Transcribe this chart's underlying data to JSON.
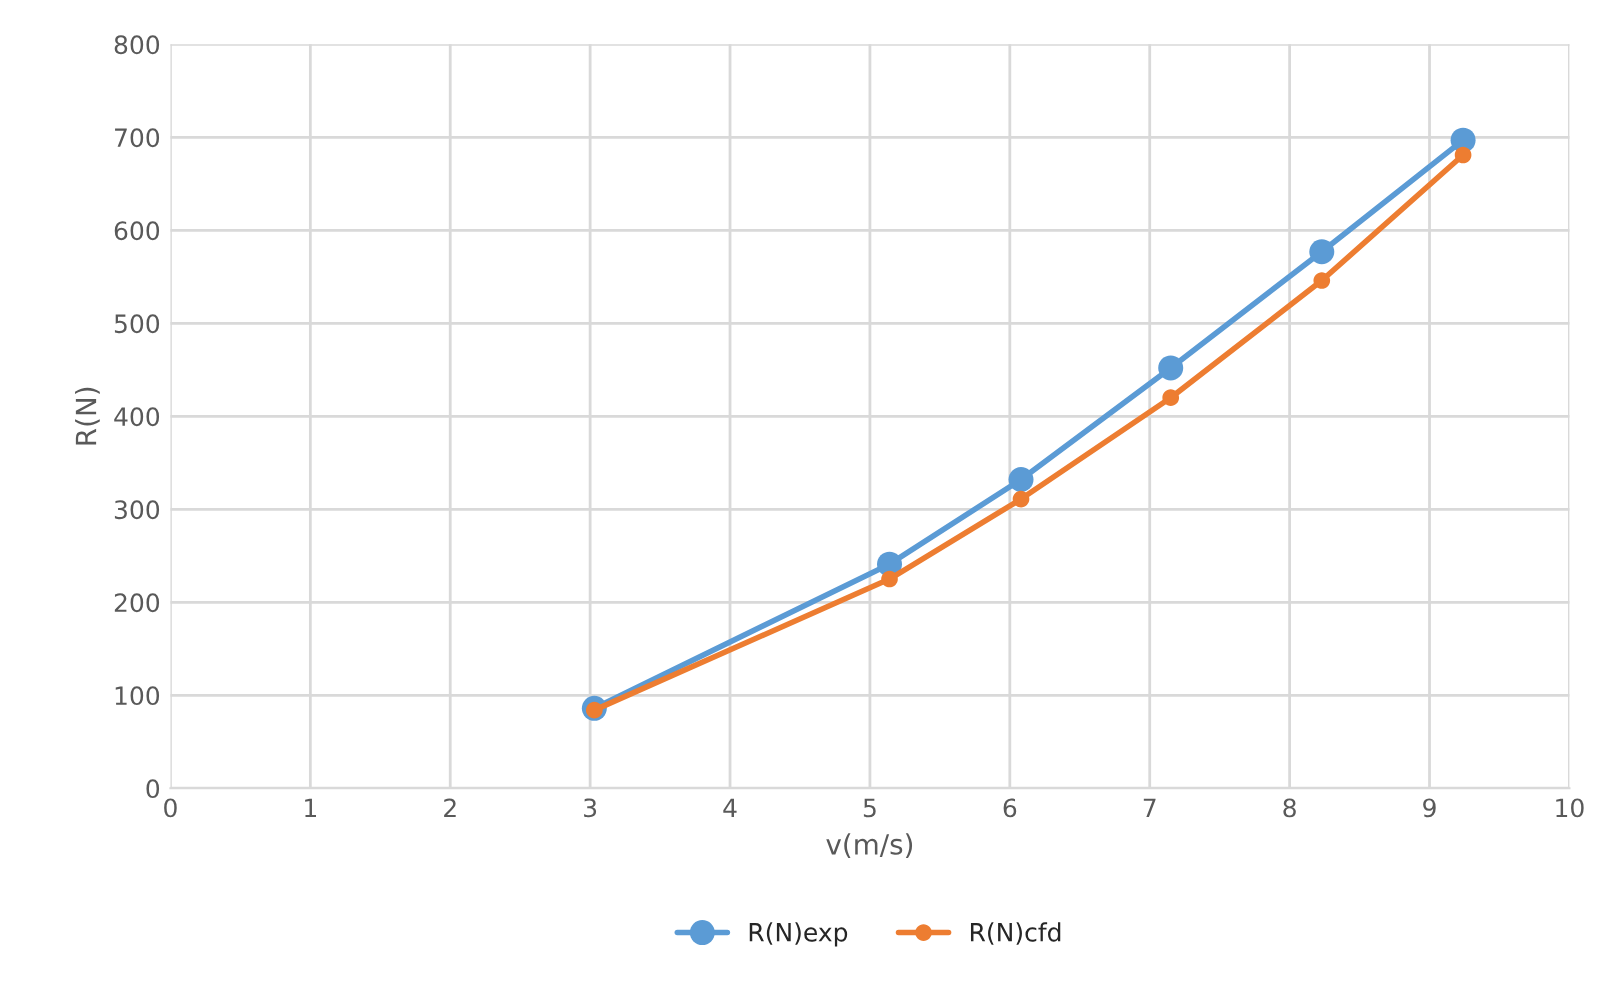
{
  "chart_data": {
    "type": "line",
    "xlabel": "v(m/s)",
    "ylabel": "R(N)",
    "xlim": [
      0,
      10
    ],
    "xticks": [
      0,
      1,
      2,
      3,
      4,
      5,
      6,
      7,
      8,
      9,
      10
    ],
    "ylim": [
      0,
      800
    ],
    "yticks": [
      0,
      100,
      200,
      300,
      400,
      500,
      600,
      700,
      800
    ],
    "grid": true,
    "legend": "bottom",
    "marker": "circle",
    "line_style": "solid",
    "series": [
      {
        "name": "R(N)exp",
        "color": "#5b9bd5",
        "x": [
          3.03,
          5.14,
          6.08,
          7.15,
          8.23,
          9.24
        ],
        "values": [
          86,
          241,
          332,
          452,
          577,
          697
        ]
      },
      {
        "name": "R(N)cfd",
        "color": "#ed7d31",
        "x": [
          3.03,
          5.14,
          6.08,
          7.15,
          8.23,
          9.24
        ],
        "values": [
          84,
          225,
          311,
          420,
          546,
          681
        ]
      }
    ]
  }
}
